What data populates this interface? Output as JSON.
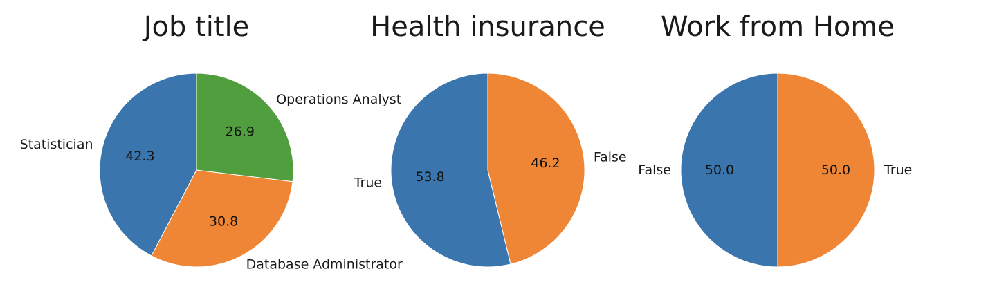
{
  "chart_data": [
    {
      "type": "pie",
      "title": "Job title",
      "categories": [
        "Statistician",
        "Database Administrator",
        "Operations Analyst"
      ],
      "values": [
        42.3,
        30.8,
        26.9
      ],
      "value_labels": [
        "42.3",
        "30.8",
        "26.9"
      ],
      "colors": [
        "#3a75ae",
        "#ef8636",
        "#519e3e"
      ],
      "start_angle_deg": 90,
      "direction": "counterclockwise"
    },
    {
      "type": "pie",
      "title": "Health insurance",
      "categories": [
        "True",
        "False"
      ],
      "values": [
        53.8,
        46.2
      ],
      "value_labels": [
        "53.8",
        "46.2"
      ],
      "colors": [
        "#3a75ae",
        "#ef8636"
      ],
      "start_angle_deg": 90,
      "direction": "counterclockwise"
    },
    {
      "type": "pie",
      "title": "Work from Home",
      "categories": [
        "False",
        "True"
      ],
      "values": [
        50.0,
        50.0
      ],
      "value_labels": [
        "50.0",
        "50.0"
      ],
      "colors": [
        "#3a75ae",
        "#ef8636"
      ],
      "start_angle_deg": 90,
      "direction": "counterclockwise"
    }
  ]
}
